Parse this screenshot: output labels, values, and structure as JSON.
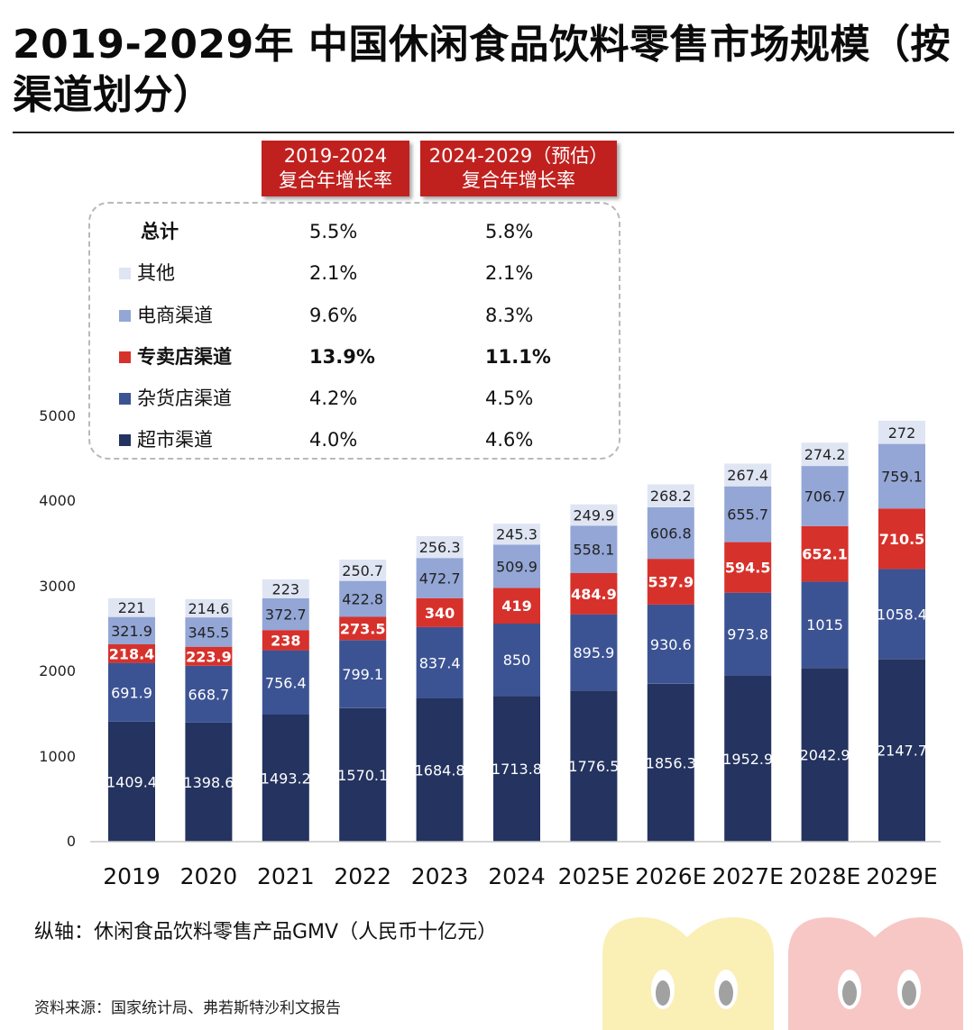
{
  "title": "2019-2029年 中国休闲食品饮料零售市场规模（按渠道划分）",
  "cagr_headers": [
    {
      "line1": "2019-2024",
      "line2": "复合年增长率"
    },
    {
      "line1": "2024-2029（预估）",
      "line2": "复合年增长率"
    }
  ],
  "cagr_rows": [
    {
      "name": "总计",
      "cagr_2019_2024": "5.5%",
      "cagr_2024_2029": "5.8%",
      "color": null,
      "bold": true
    },
    {
      "name": "其他",
      "cagr_2019_2024": "2.1%",
      "cagr_2024_2029": "2.1%",
      "color": "#dfe5f3",
      "bold": false
    },
    {
      "name": "电商渠道",
      "cagr_2019_2024": "9.6%",
      "cagr_2024_2029": "8.3%",
      "color": "#93a6d6",
      "bold": false
    },
    {
      "name": "专卖店渠道",
      "cagr_2019_2024": "13.9%",
      "cagr_2024_2029": "11.1%",
      "color": "#d7312b",
      "bold": true
    },
    {
      "name": "杂货店渠道",
      "cagr_2019_2024": "4.2%",
      "cagr_2024_2029": "4.5%",
      "color": "#3c5393",
      "bold": false
    },
    {
      "name": "超市渠道",
      "cagr_2019_2024": "4.0%",
      "cagr_2024_2029": "4.6%",
      "color": "#24335f",
      "bold": false
    }
  ],
  "chart_data": {
    "type": "bar",
    "stacked": true,
    "categories": [
      "2019",
      "2020",
      "2021",
      "2022",
      "2023",
      "2024",
      "2025E",
      "2026E",
      "2027E",
      "2028E",
      "2029E"
    ],
    "ylim": [
      0,
      5000
    ],
    "yticks": [
      "0",
      "1000",
      "2000",
      "3000",
      "4000",
      "5000"
    ],
    "ytick_values": [
      0,
      1000,
      2000,
      3000,
      4000,
      5000
    ],
    "grid": false,
    "series": [
      {
        "name": "超市渠道",
        "color": "#24335f",
        "label_color": "#ffffff",
        "label_bold": false,
        "values": [
          1409.4,
          1398.6,
          1493.2,
          1570.1,
          1684.8,
          1713.8,
          1776.5,
          1856.3,
          1952.9,
          2042.9,
          2147.7
        ],
        "labels": [
          "1409.4",
          "1398.6",
          "1493.2",
          "1570.1",
          "1684.8",
          "1713.8",
          "1776.5",
          "1856.3",
          "1952.9",
          "2042.9",
          "2147.7"
        ]
      },
      {
        "name": "杂货店渠道",
        "color": "#3c5393",
        "label_color": "#ffffff",
        "label_bold": false,
        "values": [
          691.9,
          668.7,
          756.4,
          799.1,
          837.4,
          850,
          895.9,
          930.6,
          973.8,
          1015,
          1058.4
        ],
        "labels": [
          "691.9",
          "668.7",
          "756.4",
          "799.1",
          "837.4",
          "850",
          "895.9",
          "930.6",
          "973.8",
          "1015",
          "1058.4"
        ]
      },
      {
        "name": "专卖店渠道",
        "color": "#d7312b",
        "label_color": "#ffffff",
        "label_bold": true,
        "values": [
          218.4,
          223.9,
          238,
          273.5,
          340,
          419,
          484.9,
          537.9,
          594.5,
          652.1,
          710.5
        ],
        "labels": [
          "218.4",
          "223.9",
          "238",
          "273.5",
          "340",
          "419",
          "484.9",
          "537.9",
          "594.5",
          "652.1",
          "710.5"
        ]
      },
      {
        "name": "电商渠道",
        "color": "#93a6d6",
        "label_color": "#222222",
        "label_bold": false,
        "values": [
          321.9,
          345.5,
          372.7,
          422.8,
          472.7,
          509.9,
          558.1,
          606.8,
          655.7,
          706.7,
          759.1
        ],
        "labels": [
          "321.9",
          "345.5",
          "372.7",
          "422.8",
          "472.7",
          "509.9",
          "558.1",
          "606.8",
          "655.7",
          "706.7",
          "759.1"
        ]
      },
      {
        "name": "其他",
        "color": "#dfe5f3",
        "label_color": "#222222",
        "label_bold": false,
        "values": [
          221,
          214.6,
          223,
          250.7,
          256.3,
          245.3,
          249.9,
          268.2,
          267.4,
          274.2,
          272
        ],
        "labels": [
          "221",
          "214.6",
          "223",
          "250.7",
          "256.3",
          "245.3",
          "249.9",
          "268.2",
          "267.4",
          "274.2",
          "272"
        ]
      }
    ]
  },
  "axis_note": "纵轴：休闲食品饮料零售产品GMV（人民币十亿元）",
  "source": "资料来源：国家统计局、弗若斯特沙利文报告"
}
